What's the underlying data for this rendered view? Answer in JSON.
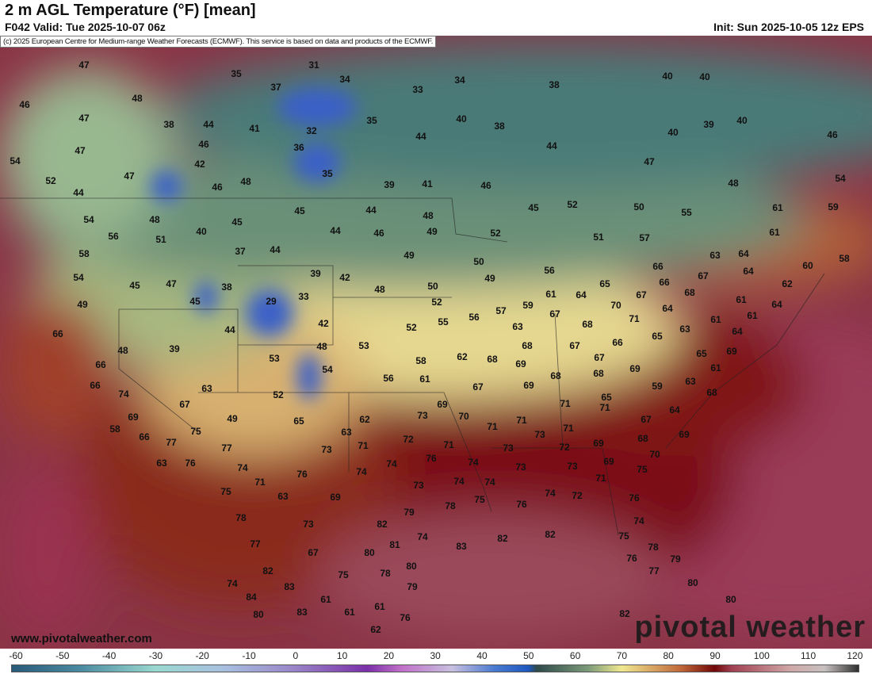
{
  "header": {
    "title": "2 m AGL Temperature (°F) [mean]",
    "valid": "F042 Valid: Tue 2025-10-07 06z",
    "init": "Init: Sun 2025-10-05 12z EPS"
  },
  "credit": "(c) 2025 European Centre for Medium-range Weather Forecasts (ECMWF). This service is based on data and products of the ECMWF.",
  "site": "www.pivotalweather.com",
  "logo": "pivotal weather",
  "colorbar": {
    "unit": "°F",
    "ticks": [
      "-60",
      "-50",
      "-40",
      "-30",
      "-20",
      "-10",
      "0",
      "10",
      "20",
      "30",
      "40",
      "50",
      "60",
      "70",
      "80",
      "90",
      "100",
      "110",
      "120"
    ]
  },
  "labels": [
    "47",
    "46",
    "48",
    "47",
    "38",
    "44",
    "41",
    "47",
    "46",
    "54",
    "47",
    "42",
    "52",
    "44",
    "46",
    "48",
    "35",
    "31",
    "34",
    "37",
    "33",
    "34",
    "35",
    "32",
    "36",
    "44",
    "40",
    "38",
    "35",
    "39",
    "41",
    "46",
    "44",
    "38",
    "40",
    "40",
    "39",
    "40",
    "46",
    "40",
    "47",
    "48",
    "54",
    "61",
    "59",
    "55",
    "50",
    "52",
    "45",
    "54",
    "48",
    "56",
    "51",
    "40",
    "45",
    "45",
    "44",
    "48",
    "46",
    "44",
    "49",
    "52",
    "51",
    "57",
    "61",
    "58",
    "54",
    "45",
    "47",
    "37",
    "44",
    "49",
    "50",
    "56",
    "63",
    "64",
    "60",
    "58",
    "66",
    "66",
    "67",
    "64",
    "62",
    "49",
    "45",
    "38",
    "29",
    "33",
    "39",
    "42",
    "48",
    "50",
    "49",
    "52",
    "61",
    "64",
    "65",
    "67",
    "68",
    "61",
    "64",
    "70",
    "59",
    "57",
    "56",
    "55",
    "52",
    "64",
    "61",
    "67",
    "68",
    "71",
    "63",
    "61",
    "64",
    "66",
    "48",
    "39",
    "44",
    "42",
    "48",
    "53",
    "63",
    "65",
    "66",
    "67",
    "68",
    "69",
    "65",
    "61",
    "66",
    "53",
    "54",
    "58",
    "62",
    "68",
    "69",
    "67",
    "69",
    "68",
    "68",
    "66",
    "56",
    "61",
    "67",
    "69",
    "59",
    "63",
    "68",
    "74",
    "63",
    "52",
    "67",
    "65",
    "71",
    "71",
    "64",
    "69",
    "49",
    "65",
    "62",
    "73",
    "69",
    "70",
    "71",
    "71",
    "67",
    "58",
    "75",
    "66",
    "77",
    "63",
    "72",
    "71",
    "71",
    "73",
    "71",
    "68",
    "69",
    "63",
    "77",
    "73",
    "76",
    "74",
    "74",
    "76",
    "74",
    "73",
    "72",
    "69",
    "70",
    "73",
    "73",
    "69",
    "75",
    "71",
    "76",
    "74",
    "73",
    "74",
    "74",
    "71",
    "75",
    "63",
    "69",
    "78",
    "75",
    "76",
    "74",
    "72",
    "76",
    "78",
    "79",
    "82",
    "82",
    "82",
    "83",
    "74",
    "73",
    "77",
    "67",
    "81",
    "74",
    "80",
    "75",
    "78",
    "82",
    "75",
    "78",
    "80",
    "76",
    "77",
    "79",
    "74",
    "83",
    "79",
    "80",
    "80",
    "84",
    "61",
    "61",
    "76",
    "80",
    "83",
    "61",
    "62",
    "82"
  ]
}
